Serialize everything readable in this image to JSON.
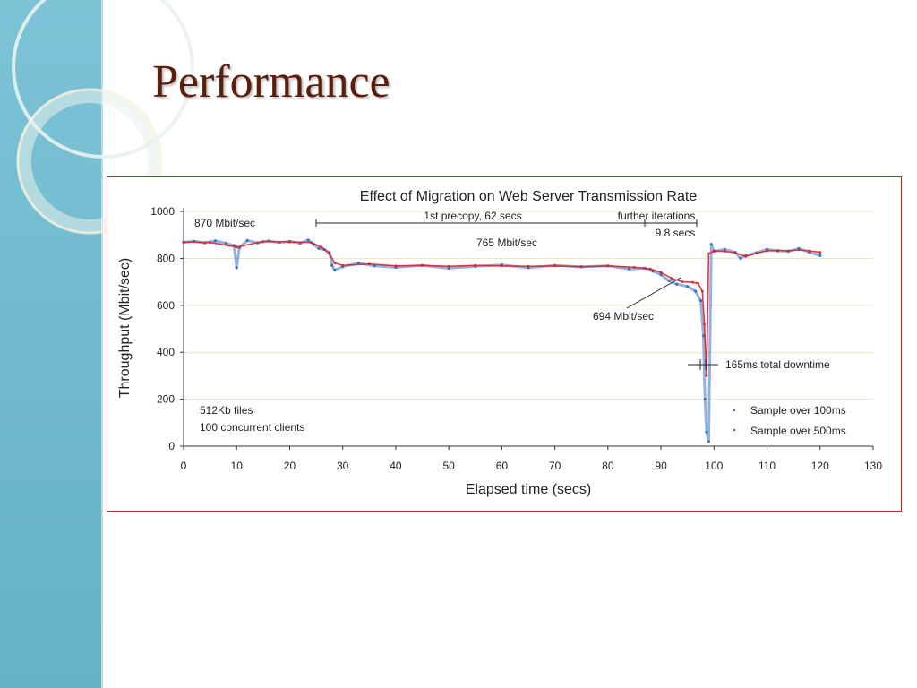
{
  "slide": {
    "title": "Performance"
  },
  "colors": {
    "sidebar": "#6fb8cc",
    "title": "#5b1d0c",
    "frame": "#c2262b",
    "series_100ms": "#3b73c4",
    "series_500ms": "#d9232e"
  },
  "chart_data": {
    "type": "scatter",
    "title": "Effect of Migration on Web Server Transmission Rate",
    "xlabel": "Elapsed time (secs)",
    "ylabel": "Throughput (Mbit/sec)",
    "xlim": [
      0,
      130
    ],
    "ylim": [
      0,
      1000
    ],
    "xticks": [
      0,
      10,
      20,
      30,
      40,
      50,
      60,
      70,
      80,
      90,
      100,
      110,
      120,
      130
    ],
    "yticks": [
      0,
      200,
      400,
      600,
      800,
      1000
    ],
    "grid": true,
    "legend_position": "bottom-right",
    "series": [
      {
        "name": "Sample over 100ms",
        "x": [
          0,
          2,
          4,
          6,
          8,
          9.5,
          10,
          10.5,
          12,
          14,
          16,
          18,
          20,
          22,
          23.5,
          24.5,
          25.5,
          26.5,
          27.5,
          28,
          28.5,
          30,
          33,
          36,
          40,
          45,
          50,
          55,
          60,
          65,
          70,
          75,
          80,
          84,
          87,
          88.5,
          90,
          91.5,
          93,
          95,
          96.5,
          97.5,
          98,
          98.3,
          98.6,
          99,
          99.5,
          100,
          102,
          104,
          105,
          106,
          108,
          110,
          112,
          114,
          116,
          118,
          120
        ],
        "y": [
          868,
          873,
          866,
          875,
          864,
          855,
          760,
          845,
          876,
          866,
          874,
          868,
          872,
          865,
          878,
          860,
          842,
          838,
          825,
          770,
          750,
          765,
          780,
          768,
          762,
          770,
          758,
          766,
          772,
          760,
          770,
          764,
          768,
          755,
          758,
          745,
          730,
          705,
          690,
          680,
          660,
          620,
          470,
          200,
          60,
          20,
          860,
          830,
          838,
          826,
          800,
          812,
          824,
          838,
          832,
          830,
          842,
          826,
          812
        ]
      },
      {
        "name": "Sample over 500ms",
        "x": [
          0,
          5,
          10,
          15,
          20,
          24,
          26,
          27.5,
          28.5,
          30,
          35,
          40,
          45,
          50,
          55,
          60,
          65,
          70,
          75,
          80,
          85,
          88,
          90,
          92,
          94,
          96,
          97,
          97.8,
          98.2,
          98.6,
          99,
          100,
          102,
          104,
          106,
          108,
          110,
          112,
          114,
          116,
          118,
          120
        ],
        "y": [
          870,
          868,
          848,
          872,
          870,
          868,
          848,
          820,
          780,
          770,
          776,
          768,
          770,
          766,
          770,
          768,
          766,
          768,
          764,
          768,
          762,
          755,
          740,
          715,
          700,
          698,
          694,
          660,
          520,
          300,
          820,
          832,
          830,
          824,
          808,
          822,
          832,
          834,
          832,
          836,
          832,
          826
        ]
      }
    ],
    "annotations": {
      "rate_870": "870 Mbit/sec",
      "precopy": "1st precopy, 62 secs",
      "further_iterations": "further iterations",
      "further_secs": "9.8 secs",
      "rate_765": "765 Mbit/sec",
      "rate_694": "694 Mbit/sec",
      "downtime": "165ms total downtime",
      "files": "512Kb files",
      "clients": "100 concurrent clients"
    }
  }
}
